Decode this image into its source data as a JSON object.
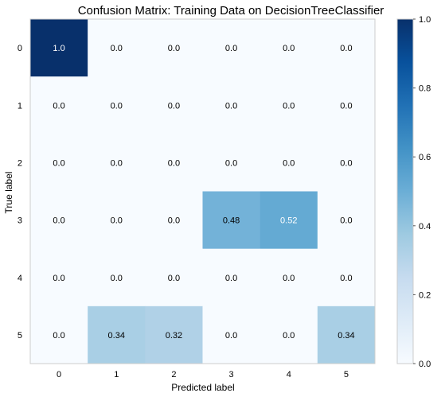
{
  "chart_data": {
    "type": "heatmap",
    "title": "Confusion Matrix: Training Data on DecisionTreeClassifier",
    "xlabel": "Predicted label",
    "ylabel": "True label",
    "x_categories": [
      "0",
      "1",
      "2",
      "3",
      "4",
      "5"
    ],
    "y_categories": [
      "0",
      "1",
      "2",
      "3",
      "4",
      "5"
    ],
    "values": [
      [
        1.0,
        0.0,
        0.0,
        0.0,
        0.0,
        0.0
      ],
      [
        0.0,
        0.0,
        0.0,
        0.0,
        0.0,
        0.0
      ],
      [
        0.0,
        0.0,
        0.0,
        0.0,
        0.0,
        0.0
      ],
      [
        0.0,
        0.0,
        0.0,
        0.48,
        0.52,
        0.0
      ],
      [
        0.0,
        0.0,
        0.0,
        0.0,
        0.0,
        0.0
      ],
      [
        0.0,
        0.34,
        0.32,
        0.0,
        0.0,
        0.34
      ]
    ],
    "cell_labels": [
      [
        "1.0",
        "0.0",
        "0.0",
        "0.0",
        "0.0",
        "0.0"
      ],
      [
        "0.0",
        "0.0",
        "0.0",
        "0.0",
        "0.0",
        "0.0"
      ],
      [
        "0.0",
        "0.0",
        "0.0",
        "0.0",
        "0.0",
        "0.0"
      ],
      [
        "0.0",
        "0.0",
        "0.0",
        "0.48",
        "0.52",
        "0.0"
      ],
      [
        "0.0",
        "0.0",
        "0.0",
        "0.0",
        "0.0",
        "0.0"
      ],
      [
        "0.0",
        "0.34",
        "0.32",
        "0.0",
        "0.0",
        "0.34"
      ]
    ],
    "colormap": "Blues",
    "colorbar": {
      "range": [
        0,
        1
      ],
      "ticks": [
        0.0,
        0.2,
        0.4,
        0.6,
        0.8,
        1.0
      ],
      "tick_labels": [
        "0.0",
        "0.2",
        "0.4",
        "0.6",
        "0.8",
        "1.0"
      ]
    },
    "colors": {
      "low": "#f7fbff",
      "high": "#08306b"
    },
    "grid": false
  }
}
